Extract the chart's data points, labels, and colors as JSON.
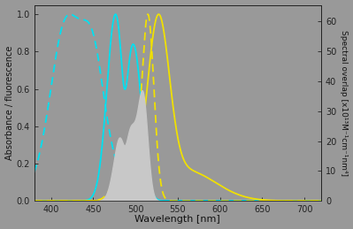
{
  "background_color": "#999999",
  "xlim": [
    380,
    720
  ],
  "ylim_left": [
    0,
    1.05
  ],
  "ylim_right": [
    0,
    65.6
  ],
  "xlabel": "Wavelength [nm]",
  "ylabel_left": "Absorbance / fluorescence",
  "ylabel_right": "Spectral overlap [x10¹³M⁻¹cm⁻¹nm⁴]",
  "yticks_left": [
    0,
    0.2,
    0.4,
    0.6,
    0.8,
    1.0
  ],
  "yticks_right": [
    0,
    10,
    20,
    30,
    40,
    50,
    60
  ],
  "xticks": [
    400,
    450,
    500,
    550,
    600,
    650,
    700
  ],
  "overlap_color": "#c8c8c8",
  "cyan_color": "#00e0f0",
  "yellow_color": "#f0e000",
  "linewidth": 1.3
}
